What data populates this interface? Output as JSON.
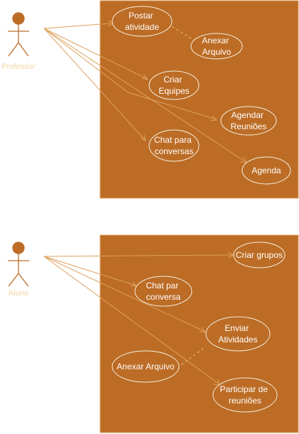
{
  "colors": {
    "boundary_fill": "#bc6c25",
    "boundary_stroke": "#dda15e",
    "line": "#dda15e",
    "actor": "#bc6c25",
    "text": "#ffffff",
    "actor_label": "#f2d6a2"
  },
  "professor": {
    "actor_name": "Professor",
    "use_cases": {
      "postar": [
        "Postar",
        "atividade"
      ],
      "anexar": [
        "Anexar",
        "Arquivo"
      ],
      "criar": [
        "Criar",
        "Equipes"
      ],
      "agendar": [
        "Agendar",
        "Reuniões"
      ],
      "chat": [
        "Chat para",
        "conversas"
      ],
      "agenda": [
        "Agenda"
      ]
    }
  },
  "aluno": {
    "actor_name": "Aluno",
    "use_cases": {
      "grupos": [
        "Criar grupos"
      ],
      "chat": [
        "Chat par",
        "conversa"
      ],
      "enviar": [
        "Enviar",
        "Atividades"
      ],
      "anexar": [
        "Anexar Arquivo"
      ],
      "participar": [
        "Participar de",
        "reuniões"
      ]
    }
  }
}
